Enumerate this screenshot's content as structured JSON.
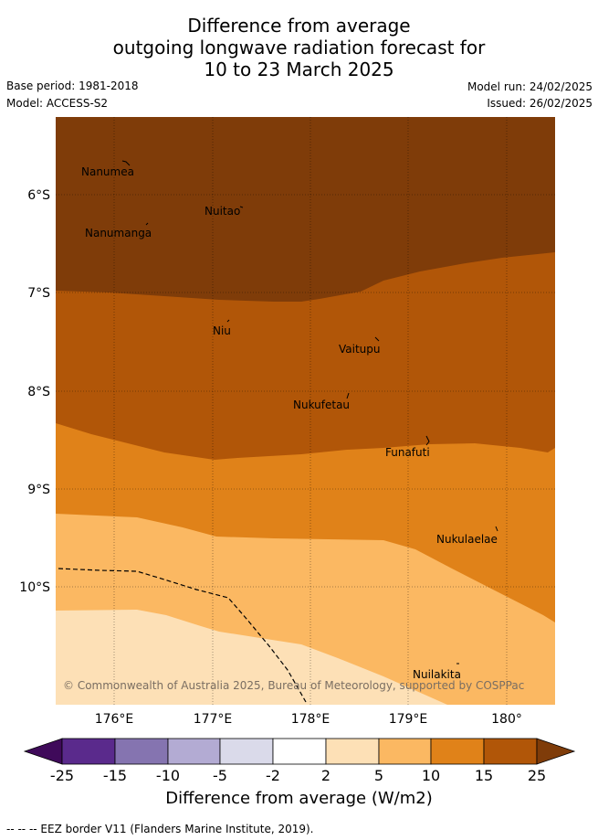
{
  "title": {
    "line1": "Difference from average",
    "line2": "outgoing longwave radiation forecast for",
    "line3": "10 to 23 March 2025"
  },
  "meta": {
    "base_period": "Base period: 1981-2018",
    "model": "Model: ACCESS-S2",
    "model_run": "Model run: 24/02/2025",
    "issued": "Issued: 26/02/2025"
  },
  "map": {
    "lon_ticks": [
      "176°E",
      "177°E",
      "178°E",
      "179°E",
      "180°"
    ],
    "lat_ticks": [
      "6°S",
      "7°S",
      "8°S",
      "9°S",
      "10°S"
    ],
    "islands": [
      "Nanumea",
      "Nuitao",
      "Nanumanga",
      "Niu",
      "Vaitupu",
      "Nukufetau",
      "Funafuti",
      "Nukulaelae",
      "Nuilakita"
    ],
    "copyright": "© Commonwealth of Australia 2025, Bureau of Meteorology, supported by COSPPac"
  },
  "colorbar": {
    "title": "Difference from average (W/m2)",
    "ticks": [
      "-25",
      "-15",
      "-10",
      "-5",
      "-2",
      "2",
      "5",
      "10",
      "15",
      "25"
    ],
    "colors": {
      "lt_-25": "#3f0a5a",
      "b1": "#5a2a8c",
      "b2": "#8574b0",
      "b3": "#b3abd3",
      "b4": "#dadaea",
      "b5": "#ffffff",
      "b6": "#fde0b6",
      "b7": "#fbb862",
      "b8": "#e08219",
      "b9": "#b15608",
      "gt_25": "#7f3c09"
    }
  },
  "legend": {
    "eez": "--  --  -- EEZ border V11 (Flanders Marine Institute, 2019)."
  }
}
